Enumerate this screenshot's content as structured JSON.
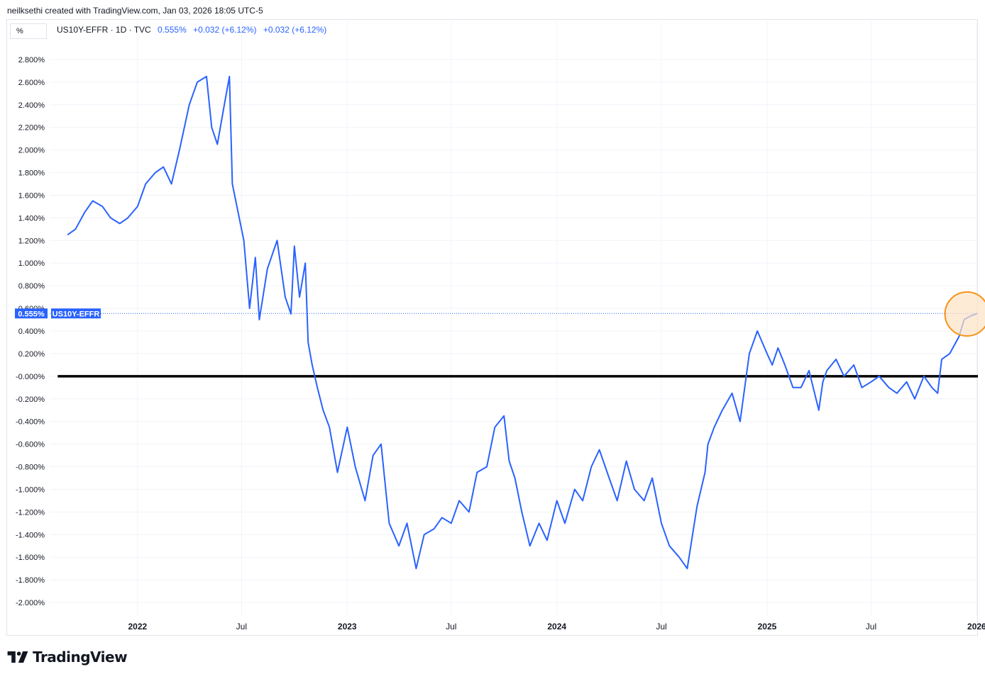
{
  "header": {
    "attribution": "neilksethi created with TradingView.com, Jan 03, 2026 18:05 UTC-5"
  },
  "toolbar": {
    "scale_mode": "%"
  },
  "legend": {
    "symbol": "US10Y-EFFR · 1D · TVC",
    "last": "0.555%",
    "change1": "+0.032 (+6.12%)",
    "change2": "+0.032 (+6.12%)"
  },
  "price_label": {
    "value": "0.555%",
    "name": "US10Y-EFFR"
  },
  "footer": {
    "brand": "TradingView"
  },
  "colors": {
    "series": "#2962ff",
    "zero_line": "#000000",
    "highlight_fill": "#fde3c4",
    "highlight_stroke": "#f7931a",
    "grid": "#f0f3fa"
  },
  "icons": [
    "tradingview-logo-icon"
  ],
  "chart_data": {
    "type": "line",
    "title": "US10Y-EFFR · 1D · TVC",
    "ylim": [
      -2.1,
      2.95
    ],
    "xlim": [
      "2021-08-01",
      "2026-01-03"
    ],
    "y_ticks": [
      "2.800%",
      "2.600%",
      "2.400%",
      "2.200%",
      "2.000%",
      "1.800%",
      "1.600%",
      "1.400%",
      "1.200%",
      "1.000%",
      "0.800%",
      "0.600%",
      "0.400%",
      "0.200%",
      "-0.000%",
      "-0.200%",
      "-0.400%",
      "-0.600%",
      "-0.800%",
      "-1.000%",
      "-1.200%",
      "-1.400%",
      "-1.600%",
      "-1.800%",
      "-2.000%"
    ],
    "y_tick_values": [
      2.8,
      2.6,
      2.4,
      2.2,
      2.0,
      1.8,
      1.6,
      1.4,
      1.2,
      1.0,
      0.8,
      0.6,
      0.4,
      0.2,
      0.0,
      -0.2,
      -0.4,
      -0.6,
      -0.8,
      -1.0,
      -1.2,
      -1.4,
      -1.6,
      -1.8,
      -2.0
    ],
    "x_ticks": [
      {
        "label": "2022",
        "date": "2022-01-01",
        "bold": true
      },
      {
        "label": "Jul",
        "date": "2022-07-01",
        "bold": false
      },
      {
        "label": "2023",
        "date": "2023-01-01",
        "bold": true
      },
      {
        "label": "Jul",
        "date": "2023-07-01",
        "bold": false
      },
      {
        "label": "2024",
        "date": "2024-01-01",
        "bold": true
      },
      {
        "label": "Jul",
        "date": "2024-07-01",
        "bold": false
      },
      {
        "label": "2025",
        "date": "2025-01-01",
        "bold": true
      },
      {
        "label": "Jul",
        "date": "2025-07-01",
        "bold": false
      },
      {
        "label": "2026",
        "date": "2026-01-01",
        "bold": true
      }
    ],
    "horizontal_lines": [
      {
        "value": 0.0,
        "from": "2021-08-15",
        "to": "2026-01-03"
      }
    ],
    "highlight_circle": {
      "x": "2025-12-15",
      "y": 0.55
    },
    "series": [
      {
        "name": "US10Y-EFFR",
        "x": [
          "2021-09-01",
          "2021-09-15",
          "2021-10-01",
          "2021-10-15",
          "2021-11-01",
          "2021-11-15",
          "2021-12-01",
          "2021-12-15",
          "2022-01-01",
          "2022-01-15",
          "2022-02-01",
          "2022-02-15",
          "2022-03-01",
          "2022-03-15",
          "2022-04-01",
          "2022-04-15",
          "2022-05-01",
          "2022-05-10",
          "2022-05-20",
          "2022-06-01",
          "2022-06-10",
          "2022-06-15",
          "2022-06-25",
          "2022-07-05",
          "2022-07-15",
          "2022-07-25",
          "2022-08-01",
          "2022-08-15",
          "2022-09-01",
          "2022-09-15",
          "2022-09-25",
          "2022-10-01",
          "2022-10-10",
          "2022-10-20",
          "2022-10-25",
          "2022-11-01",
          "2022-11-10",
          "2022-11-20",
          "2022-12-01",
          "2022-12-15",
          "2023-01-01",
          "2023-01-15",
          "2023-02-01",
          "2023-02-15",
          "2023-03-01",
          "2023-03-15",
          "2023-04-01",
          "2023-04-15",
          "2023-05-01",
          "2023-05-15",
          "2023-06-01",
          "2023-06-15",
          "2023-07-01",
          "2023-07-15",
          "2023-08-01",
          "2023-08-15",
          "2023-09-01",
          "2023-09-15",
          "2023-10-01",
          "2023-10-10",
          "2023-10-20",
          "2023-11-01",
          "2023-11-15",
          "2023-12-01",
          "2023-12-15",
          "2024-01-01",
          "2024-01-15",
          "2024-02-01",
          "2024-02-15",
          "2024-03-01",
          "2024-03-15",
          "2024-04-01",
          "2024-04-15",
          "2024-05-01",
          "2024-05-15",
          "2024-06-01",
          "2024-06-15",
          "2024-07-01",
          "2024-07-15",
          "2024-08-01",
          "2024-08-15",
          "2024-09-01",
          "2024-09-15",
          "2024-09-20",
          "2024-10-01",
          "2024-10-15",
          "2024-11-01",
          "2024-11-15",
          "2024-12-01",
          "2024-12-15",
          "2025-01-01",
          "2025-01-10",
          "2025-01-20",
          "2025-02-01",
          "2025-02-15",
          "2025-03-01",
          "2025-03-15",
          "2025-04-01",
          "2025-04-08",
          "2025-04-15",
          "2025-05-01",
          "2025-05-15",
          "2025-06-01",
          "2025-06-15",
          "2025-07-01",
          "2025-07-15",
          "2025-08-01",
          "2025-08-15",
          "2025-09-01",
          "2025-09-15",
          "2025-10-01",
          "2025-10-15",
          "2025-10-25",
          "2025-11-01",
          "2025-11-15",
          "2025-12-01",
          "2025-12-10",
          "2025-12-20",
          "2026-01-02"
        ],
        "values": [
          1.25,
          1.3,
          1.45,
          1.55,
          1.5,
          1.4,
          1.35,
          1.4,
          1.5,
          1.7,
          1.8,
          1.85,
          1.7,
          2.0,
          2.4,
          2.6,
          2.65,
          2.2,
          2.05,
          2.4,
          2.65,
          1.7,
          1.45,
          1.2,
          0.6,
          1.05,
          0.5,
          0.95,
          1.2,
          0.7,
          0.55,
          1.15,
          0.7,
          1.0,
          0.3,
          0.1,
          -0.1,
          -0.3,
          -0.45,
          -0.85,
          -0.45,
          -0.8,
          -1.1,
          -0.7,
          -0.6,
          -1.3,
          -1.5,
          -1.3,
          -1.7,
          -1.4,
          -1.35,
          -1.25,
          -1.3,
          -1.1,
          -1.2,
          -0.85,
          -0.8,
          -0.45,
          -0.35,
          -0.75,
          -0.9,
          -1.2,
          -1.5,
          -1.3,
          -1.45,
          -1.1,
          -1.3,
          -1.0,
          -1.1,
          -0.8,
          -0.65,
          -0.9,
          -1.1,
          -0.75,
          -1.0,
          -1.1,
          -0.9,
          -1.3,
          -1.5,
          -1.6,
          -1.7,
          -1.15,
          -0.85,
          -0.6,
          -0.45,
          -0.3,
          -0.15,
          -0.4,
          0.2,
          0.4,
          0.2,
          0.1,
          0.25,
          0.1,
          -0.1,
          -0.1,
          0.05,
          -0.3,
          -0.05,
          0.05,
          0.15,
          0.0,
          0.1,
          -0.1,
          -0.05,
          0.0,
          -0.1,
          -0.15,
          -0.05,
          -0.2,
          0.0,
          -0.1,
          -0.15,
          0.15,
          0.2,
          0.35,
          0.5,
          0.53,
          0.555
        ]
      }
    ]
  }
}
